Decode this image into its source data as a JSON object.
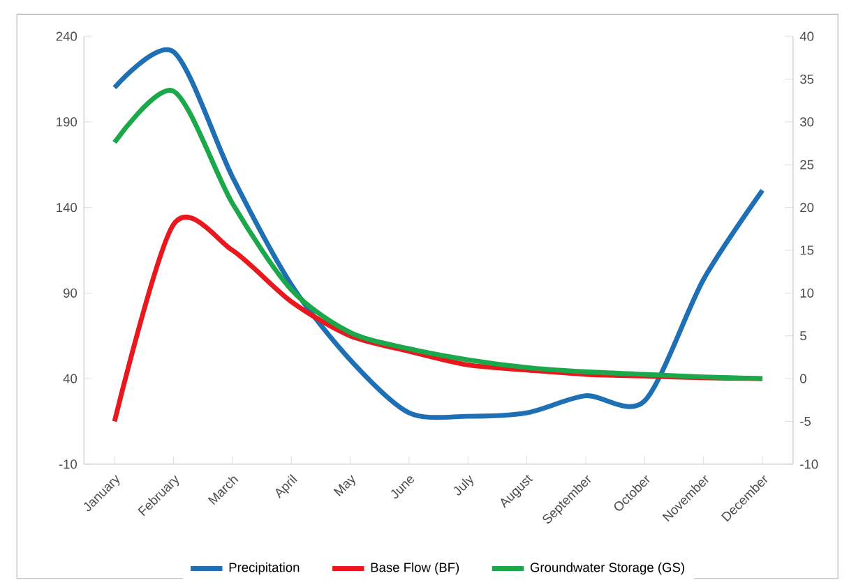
{
  "chart_data": {
    "type": "line",
    "categories": [
      "January",
      "February",
      "March",
      "April",
      "May",
      "June",
      "July",
      "August",
      "September",
      "October",
      "November",
      "December"
    ],
    "series": [
      {
        "name": "Precipitation",
        "color": "#1f6fb5",
        "values": [
          210,
          231,
          158,
          95,
          51,
          20,
          18,
          20,
          30,
          27,
          98,
          150
        ]
      },
      {
        "name": "Base Flow (BF)",
        "color": "#e8181e",
        "axis": "y2",
        "values": [
          -5,
          18,
          15,
          9,
          5,
          3.2,
          1.6,
          1,
          0.5,
          0.3,
          0.1,
          0
        ]
      },
      {
        "name": "Groundwater Storage (GS)",
        "color": "#1aa84a",
        "axis": "y2",
        "values": [
          27.6,
          33.6,
          20.5,
          10.4,
          5.4,
          3.5,
          2.2,
          1.3,
          0.8,
          0.5,
          0.2,
          0
        ]
      }
    ],
    "ylim": [
      -10,
      240
    ],
    "yticks": [
      -10,
      40,
      90,
      140,
      190,
      240
    ],
    "y2lim": [
      -10,
      40
    ],
    "y2ticks": [
      -10,
      -5,
      0,
      5,
      10,
      15,
      20,
      25,
      30,
      35,
      40
    ],
    "legend": "bottom",
    "grid": false,
    "marker": "none",
    "line_style": "solid"
  }
}
